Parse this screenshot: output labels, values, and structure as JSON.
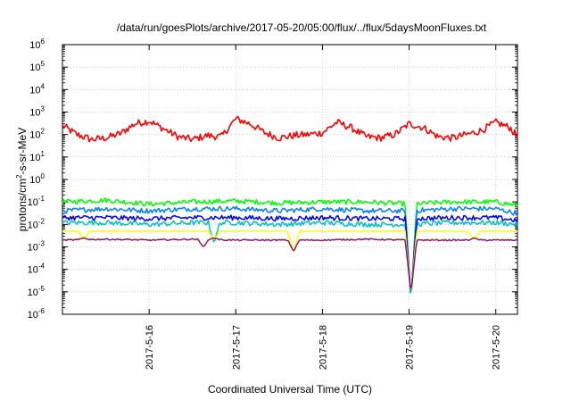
{
  "chart_data": {
    "type": "line",
    "title": "/data/run/goesPlots/archive/2017-05-20/05:00/flux/../flux/5daysMoonFluxes.txt",
    "xlabel": "Coordinated Universal Time (UTC)",
    "ylabel": "protons/cm²-s-sr-MeV",
    "ylabel_parts": {
      "pre": "protons/cm",
      "sup": "2",
      "post": "-s-sr-MeV"
    },
    "y_scale": "log",
    "ylim": [
      1e-06,
      1000000.0
    ],
    "y_ticks": [
      {
        "value": -6,
        "base": "10",
        "exp": "-6"
      },
      {
        "value": -5,
        "base": "10",
        "exp": "-5"
      },
      {
        "value": -4,
        "base": "10",
        "exp": "-4"
      },
      {
        "value": -3,
        "base": "10",
        "exp": "-3"
      },
      {
        "value": -2,
        "base": "10",
        "exp": "-2"
      },
      {
        "value": -1,
        "base": "10",
        "exp": "-1"
      },
      {
        "value": 0,
        "base": "10",
        "exp": "0"
      },
      {
        "value": 1,
        "base": "10",
        "exp": "1"
      },
      {
        "value": 2,
        "base": "10",
        "exp": "2"
      },
      {
        "value": 3,
        "base": "10",
        "exp": "3"
      },
      {
        "value": 4,
        "base": "10",
        "exp": "4"
      },
      {
        "value": 5,
        "base": "10",
        "exp": "5"
      },
      {
        "value": 6,
        "base": "10",
        "exp": "6"
      }
    ],
    "xlim": [
      "2017-05-15 00:00",
      "2017-05-20 06:00"
    ],
    "x_ticks": [
      {
        "value": "2017-05-16",
        "label": "2017-5-16"
      },
      {
        "value": "2017-05-17",
        "label": "2017-5-17"
      },
      {
        "value": "2017-05-18",
        "label": "2017-5-18"
      },
      {
        "value": "2017-05-19",
        "label": "2017-5-19"
      },
      {
        "value": "2017-05-20",
        "label": "2017-5-20"
      }
    ],
    "grid": true,
    "series": [
      {
        "color": "#ff0000",
        "points": [
          [
            "2017-05-15 00:00",
            250
          ],
          [
            "2017-05-15 04:00",
            100
          ],
          [
            "2017-05-15 08:00",
            60
          ],
          [
            "2017-05-15 12:00",
            70
          ],
          [
            "2017-05-15 16:00",
            110
          ],
          [
            "2017-05-15 20:00",
            300
          ],
          [
            "2017-05-16 00:00",
            400
          ],
          [
            "2017-05-16 04:00",
            180
          ],
          [
            "2017-05-16 08:00",
            80
          ],
          [
            "2017-05-16 12:00",
            60
          ],
          [
            "2017-05-16 16:00",
            90
          ],
          [
            "2017-05-16 20:00",
            80
          ],
          [
            "2017-05-17 00:00",
            500
          ],
          [
            "2017-05-17 04:00",
            300
          ],
          [
            "2017-05-17 08:00",
            120
          ],
          [
            "2017-05-17 12:00",
            70
          ],
          [
            "2017-05-17 16:00",
            90
          ],
          [
            "2017-05-17 20:00",
            100
          ],
          [
            "2017-05-18 00:00",
            120
          ],
          [
            "2017-05-18 04:00",
            350
          ],
          [
            "2017-05-18 08:00",
            200
          ],
          [
            "2017-05-18 12:00",
            80
          ],
          [
            "2017-05-18 16:00",
            70
          ],
          [
            "2017-05-18 20:00",
            100
          ],
          [
            "2017-05-19 00:00",
            300
          ],
          [
            "2017-05-19 04:00",
            200
          ],
          [
            "2017-05-19 08:00",
            80
          ],
          [
            "2017-05-19 12:00",
            70
          ],
          [
            "2017-05-19 16:00",
            100
          ],
          [
            "2017-05-19 20:00",
            150
          ],
          [
            "2017-05-20 00:00",
            350
          ],
          [
            "2017-05-20 04:00",
            200
          ],
          [
            "2017-05-20 06:00",
            80
          ]
        ]
      },
      {
        "color": "#00ff00",
        "points": [
          [
            "2017-05-15 00:00",
            0.1
          ],
          [
            "2017-05-15 12:00",
            0.12
          ],
          [
            "2017-05-16 00:00",
            0.08
          ],
          [
            "2017-05-16 12:00",
            0.1
          ],
          [
            "2017-05-17 00:00",
            0.11
          ],
          [
            "2017-05-17 12:00",
            0.09
          ],
          [
            "2017-05-18 00:00",
            0.1
          ],
          [
            "2017-05-18 12:00",
            0.1
          ],
          [
            "2017-05-19 00:00",
            0.08
          ],
          [
            "2017-05-19 12:00",
            0.1
          ],
          [
            "2017-05-20 00:00",
            0.1
          ],
          [
            "2017-05-20 06:00",
            0.07
          ]
        ]
      },
      {
        "color": "#0080ff",
        "points": [
          [
            "2017-05-15 00:00",
            0.04
          ],
          [
            "2017-05-15 12:00",
            0.05
          ],
          [
            "2017-05-16 00:00",
            0.04
          ],
          [
            "2017-05-16 12:00",
            0.05
          ],
          [
            "2017-05-17 00:00",
            0.05
          ],
          [
            "2017-05-17 12:00",
            0.04
          ],
          [
            "2017-05-18 00:00",
            0.05
          ],
          [
            "2017-05-18 12:00",
            0.04
          ],
          [
            "2017-05-19 00:00",
            0.04
          ],
          [
            "2017-05-19 12:00",
            0.05
          ],
          [
            "2017-05-20 00:00",
            0.05
          ],
          [
            "2017-05-20 06:00",
            0.03
          ]
        ]
      },
      {
        "color": "#00c0c0",
        "points": [
          [
            "2017-05-15 00:00",
            0.012
          ],
          [
            "2017-05-15 12:00",
            0.012
          ],
          [
            "2017-05-16 00:00",
            0.01
          ],
          [
            "2017-05-16 12:00",
            0.012
          ],
          [
            "2017-05-17 00:00",
            0.012
          ],
          [
            "2017-05-17 12:00",
            0.01
          ],
          [
            "2017-05-18 00:00",
            0.012
          ],
          [
            "2017-05-18 12:00",
            0.01
          ],
          [
            "2017-05-19 00:00",
            0.01
          ],
          [
            "2017-05-19 12:00",
            0.012
          ],
          [
            "2017-05-20 00:00",
            0.012
          ],
          [
            "2017-05-20 06:00",
            0.01
          ]
        ]
      },
      {
        "color": "#0000ff",
        "points": [
          [
            "2017-05-15 00:00",
            0.02
          ],
          [
            "2017-05-15 12:00",
            0.02
          ],
          [
            "2017-05-16 00:00",
            0.018
          ],
          [
            "2017-05-16 12:00",
            0.02
          ],
          [
            "2017-05-17 00:00",
            0.02
          ],
          [
            "2017-05-17 12:00",
            0.018
          ],
          [
            "2017-05-18 00:00",
            0.02
          ],
          [
            "2017-05-18 12:00",
            0.018
          ],
          [
            "2017-05-19 00:00",
            0.018
          ],
          [
            "2017-05-19 12:00",
            0.02
          ],
          [
            "2017-05-20 00:00",
            0.02
          ],
          [
            "2017-05-20 06:00",
            0.015
          ]
        ]
      },
      {
        "color": "#ffff00",
        "points": [
          [
            "2017-05-15 00:00",
            0.005
          ],
          [
            "2017-05-15 12:00",
            0.005
          ],
          [
            "2017-05-16 00:00",
            0.005
          ],
          [
            "2017-05-16 12:00",
            0.005
          ],
          [
            "2017-05-17 00:00",
            0.005
          ],
          [
            "2017-05-17 12:00",
            0.005
          ],
          [
            "2017-05-18 00:00",
            0.005
          ],
          [
            "2017-05-18 12:00",
            0.005
          ],
          [
            "2017-05-19 00:00",
            0.005
          ],
          [
            "2017-05-19 12:00",
            0.005
          ],
          [
            "2017-05-20 00:00",
            0.005
          ],
          [
            "2017-05-20 06:00",
            0.005
          ]
        ]
      },
      {
        "color": "#8b1a6b",
        "points": [
          [
            "2017-05-15 00:00",
            0.002
          ],
          [
            "2017-05-15 12:00",
            0.0022
          ],
          [
            "2017-05-16 00:00",
            0.002
          ],
          [
            "2017-05-16 12:00",
            0.0022
          ],
          [
            "2017-05-17 00:00",
            0.002
          ],
          [
            "2017-05-17 12:00",
            0.002
          ],
          [
            "2017-05-18 00:00",
            0.002
          ],
          [
            "2017-05-18 12:00",
            0.0022
          ],
          [
            "2017-05-19 00:00",
            0.002
          ],
          [
            "2017-05-19 12:00",
            0.002
          ],
          [
            "2017-05-20 00:00",
            0.002
          ],
          [
            "2017-05-20 06:00",
            0.002
          ]
        ]
      }
    ],
    "dips": [
      {
        "time": "2017-05-15 06:00",
        "series": [
          5,
          6
        ],
        "value": 0.001
      },
      {
        "time": "2017-05-16 15:00",
        "series": [
          6
        ],
        "value": 0.0004
      },
      {
        "time": "2017-05-16 18:00",
        "series": [
          3,
          5,
          6
        ],
        "value": 0.001
      },
      {
        "time": "2017-05-17 16:00",
        "series": [
          5,
          6
        ],
        "value": 0.00025
      },
      {
        "time": "2017-05-19 00:30",
        "series": [
          1,
          2,
          3,
          4,
          5,
          6
        ],
        "value": 3.5e-06
      },
      {
        "time": "2017-05-19 18:00",
        "series": [
          5,
          6
        ],
        "value": 0.001
      }
    ]
  }
}
